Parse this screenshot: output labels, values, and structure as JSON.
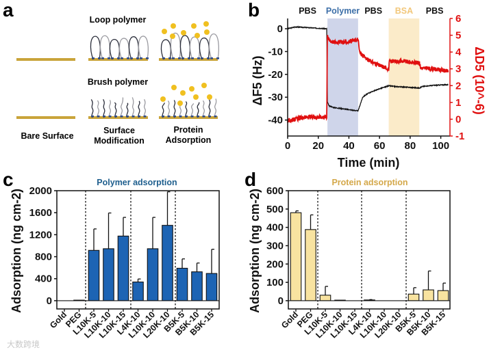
{
  "panel_labels": {
    "a": "a",
    "b": "b",
    "c": "c",
    "d": "d"
  },
  "schematic": {
    "loop_title": "Loop polymer",
    "brush_title": "Brush polymer",
    "bare_label": "Bare Surface",
    "mod_label_1": "Surface",
    "mod_label_2": "Modification",
    "ads_label_1": "Protein",
    "ads_label_2": "Adsorption",
    "colors": {
      "gold": "#c9a43a",
      "protein": "#f0c020",
      "polymer_dark": "#2a2d3a",
      "polymer_light": "#9a9aa0",
      "anchor": "#2e4a8a"
    }
  },
  "watermark": "大数跨境",
  "chart_data": [
    {
      "type": "line",
      "panel": "b",
      "xlabel": "Time (min)",
      "ylabel": "ΔF5 (Hz)",
      "ylabel_right": "ΔD5 (10^-6)",
      "xlim": [
        0,
        106
      ],
      "ylim": [
        -47,
        4.5
      ],
      "ylim_right": [
        -1,
        6
      ],
      "xticks": [
        0,
        20,
        40,
        60,
        80,
        100
      ],
      "yticks": [
        0,
        -10,
        -20,
        -30,
        -40
      ],
      "yticks_right": [
        6,
        5,
        4,
        3,
        2,
        1,
        0,
        -1
      ],
      "phases": [
        {
          "label": "PBS",
          "start": 0,
          "end": 26,
          "color": "#111111",
          "shade": null
        },
        {
          "label": "Polymer",
          "start": 26,
          "end": 46,
          "color": "#3d6fa8",
          "shade": "#cfd5ea"
        },
        {
          "label": "PBS",
          "start": 46,
          "end": 66,
          "color": "#111111",
          "shade": null
        },
        {
          "label": "BSA",
          "start": 66,
          "end": 86,
          "color": "#f2c77a",
          "shade": "#fbebc9"
        },
        {
          "label": "PBS",
          "start": 86,
          "end": 106,
          "color": "#111111",
          "shade": null
        }
      ],
      "series": [
        {
          "name": "ΔF5",
          "axis": "left",
          "color": "#111111",
          "x": [
            0,
            5,
            25.6,
            25.9,
            27,
            30,
            46,
            47,
            49,
            52,
            56,
            60,
            66,
            70,
            80,
            86,
            88,
            95,
            105
          ],
          "y": [
            0,
            0.8,
            0,
            -32,
            -33.8,
            -34.5,
            -36,
            -34,
            -30,
            -28.5,
            -27.3,
            -26.3,
            -25,
            -25.3,
            -25.7,
            -26,
            -25.3,
            -24.8,
            -24.5
          ]
        },
        {
          "name": "ΔD5",
          "axis": "right",
          "color": "#e01010",
          "x": [
            0,
            10,
            25.6,
            25.9,
            27,
            30,
            40,
            46,
            47,
            49,
            53,
            60,
            66,
            66.5,
            75,
            86,
            87,
            95,
            105
          ],
          "y": [
            -0.1,
            0.1,
            0.15,
            5.1,
            4.7,
            4.6,
            4.6,
            4.75,
            4.0,
            3.8,
            3.5,
            3.2,
            3.0,
            3.45,
            3.45,
            3.35,
            3.05,
            3.0,
            2.85
          ]
        }
      ]
    },
    {
      "type": "bar",
      "panel": "c",
      "title": "Polymer adsorption",
      "title_color": "#1f5f8e",
      "bar_color": "#1d64b4",
      "xlabel": "",
      "ylabel": "Adsorption (ng cm-2)",
      "ylim": [
        -150,
        2000
      ],
      "yticks": [
        0,
        400,
        800,
        1200,
        1600,
        2000
      ],
      "categories": [
        "Gold",
        "PEG",
        "L10K-5",
        "L10K-10",
        "L10K-15",
        "L4K-10",
        "L10K-10",
        "L20K-10",
        "B5K-5",
        "B5K-10",
        "B5K-15"
      ],
      "values": [
        0,
        10,
        915,
        945,
        1175,
        340,
        945,
        1370,
        590,
        525,
        495
      ],
      "errors": [
        0,
        0,
        390,
        650,
        340,
        55,
        570,
        610,
        170,
        160,
        440
      ],
      "group_dividers_after": [
        1,
        4,
        7
      ]
    },
    {
      "type": "bar",
      "panel": "d",
      "title": "Protein adsorption",
      "title_color": "#d4a84a",
      "bar_color": "#f8e3a0",
      "xlabel": "",
      "ylabel": "Adsorption (ng cm-2)",
      "ylim": [
        -45,
        600
      ],
      "yticks": [
        0,
        100,
        200,
        300,
        400,
        500,
        600
      ],
      "categories": [
        "Gold",
        "PEG",
        "L10K-5",
        "L10K-10",
        "L10K-15",
        "L4K-10",
        "L10K-10",
        "L20K-10",
        "B5K-5",
        "B5K-10",
        "B5K-15"
      ],
      "values": [
        480,
        388,
        30,
        3,
        0,
        4,
        0,
        0,
        36,
        59,
        55
      ],
      "errors": [
        10,
        80,
        48,
        0,
        0,
        2,
        0,
        0,
        35,
        103,
        41
      ],
      "group_dividers_after": [
        1,
        4,
        7
      ]
    }
  ]
}
